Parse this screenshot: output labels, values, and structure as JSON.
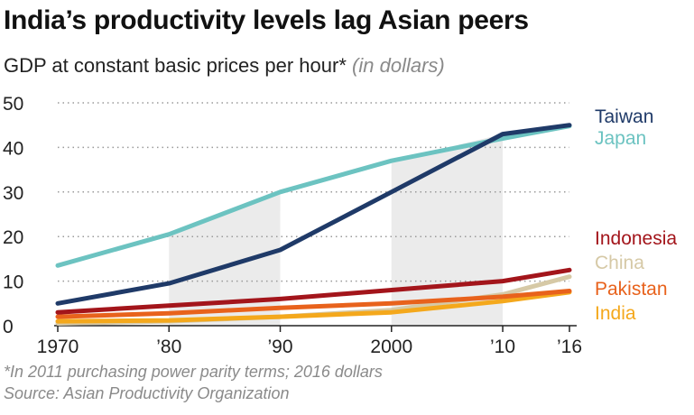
{
  "header": {
    "title": "India’s productivity levels lag Asian peers",
    "subtitle": "GDP at constant basic prices per hour*",
    "unit": "(in dollars)"
  },
  "footer": {
    "note": "*In 2011 purchasing power parity terms; 2016 dollars",
    "source": "Source: Asian Productivity Organization"
  },
  "chart_data": {
    "type": "line",
    "title": "India’s productivity levels lag Asian peers",
    "subtitle": "GDP at constant basic prices per hour*",
    "xlabel": "",
    "ylabel": "",
    "x": [
      1970,
      1980,
      1990,
      2000,
      2010,
      2016
    ],
    "x_tick_labels": [
      "1970",
      "’80",
      "’90",
      "2000",
      "’10",
      "’16"
    ],
    "ylim": [
      0,
      50
    ],
    "y_ticks": [
      0,
      10,
      20,
      30,
      40,
      50
    ],
    "grid": "horizontal dotted",
    "legend": "right, labels at line ends",
    "series": [
      {
        "name": "Taiwan",
        "color": "#1f3a68",
        "values": [
          5,
          9.5,
          17,
          30,
          43,
          45
        ]
      },
      {
        "name": "Japan",
        "color": "#6cc3c1",
        "values": [
          13.5,
          20.5,
          30,
          37,
          42,
          44.8
        ]
      },
      {
        "name": "Indonesia",
        "color": "#a3151b",
        "values": [
          3,
          4.5,
          6,
          8,
          10,
          12.5
        ]
      },
      {
        "name": "China",
        "color": "#d6c9a6",
        "values": [
          0.5,
          1,
          2,
          3.5,
          7,
          11
        ]
      },
      {
        "name": "Pakistan",
        "color": "#e8621c",
        "values": [
          2,
          2.8,
          4,
          5,
          6.5,
          7.8
        ]
      },
      {
        "name": "India",
        "color": "#f4a81c",
        "values": [
          1,
          1.2,
          2,
          3,
          5.5,
          7.5
        ]
      }
    ]
  }
}
